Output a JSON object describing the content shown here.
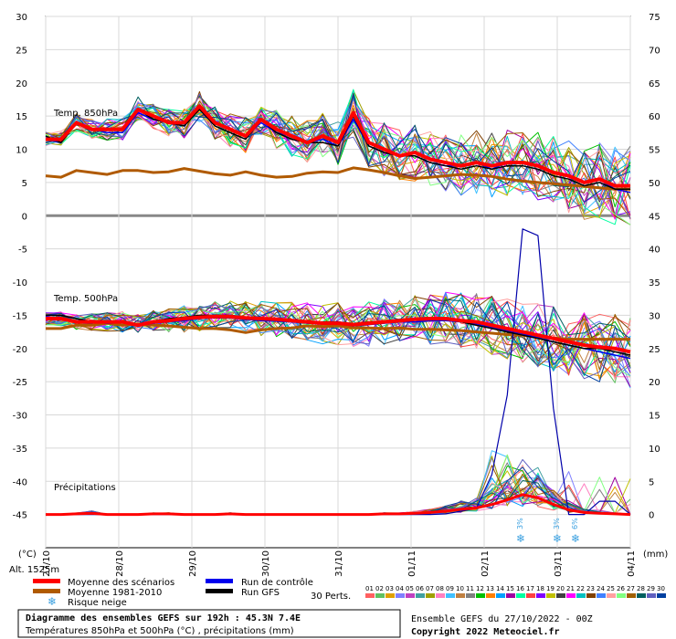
{
  "chart_data": {
    "type": "line",
    "title": "Diagramme des ensembles GEFS sur 192h : 45.3N 7.4E",
    "subtitle": "Températures 850hPa et 500hPa (°C) , précipitations (mm)",
    "run_info": "Ensemble GEFS du 27/10/2022 - 00Z",
    "copyright": "Copyright 2022 Meteociel.fr",
    "altitude": "Alt. 1525m",
    "left_unit": "(°C)",
    "right_unit": "(mm)",
    "left_axis": {
      "min": -50,
      "max": 30,
      "ticks": [
        "30",
        "25",
        "20",
        "15",
        "10",
        "5",
        "0",
        "-5",
        "-10",
        "-15",
        "-20",
        "-25",
        "-30",
        "-35",
        "-40",
        "-45"
      ]
    },
    "right_axis_ticks": [
      "75",
      "70",
      "65",
      "60",
      "55",
      "50",
      "45",
      "40",
      "35",
      "30",
      "25",
      "20",
      "15",
      "10",
      "5",
      "0"
    ],
    "x_dates": [
      "27/10",
      "28/10",
      "29/10",
      "30/10",
      "31/10",
      "01/11",
      "02/11",
      "03/11",
      "04/11"
    ],
    "panel_labels": {
      "t850": "Temp. 850hPa",
      "t500": "Temp. 500hPa",
      "precip": "Précipitations"
    },
    "t850_mean": [
      11.5,
      11.5,
      14,
      13,
      13,
      13,
      16,
      15,
      14,
      14,
      16.5,
      14,
      13,
      12,
      14.5,
      13,
      12,
      11,
      12,
      11,
      15.5,
      11,
      10,
      9,
      9.5,
      8.5,
      8,
      7.5,
      8,
      7.5,
      8,
      8,
      7.5,
      6.5,
      6,
      5,
      5.5,
      4.5,
      4.5
    ],
    "t850_gfs": [
      12,
      11,
      14,
      13,
      13,
      13,
      16,
      14.5,
      14,
      13.5,
      16,
      13.5,
      12.5,
      11.5,
      14.5,
      12.5,
      11.5,
      11,
      11,
      10.5,
      15,
      10.5,
      9.5,
      9,
      9,
      8,
      7.5,
      7,
      7.5,
      7,
      7.5,
      7.5,
      7,
      6,
      5.5,
      4.5,
      5,
      4,
      4
    ],
    "t850_control": [
      11.5,
      11,
      14,
      13,
      12.5,
      12.5,
      15.5,
      14.5,
      14,
      13.5,
      16.5,
      14,
      13,
      12,
      14,
      12.5,
      12,
      11,
      11.5,
      10.5,
      14.5,
      10.5,
      9.5,
      9,
      9,
      8,
      7.5,
      7.5,
      8,
      7,
      8,
      8,
      7.5,
      6.5,
      6,
      5,
      5.5,
      4,
      3.5
    ],
    "t850_clim": [
      6,
      5.8,
      6.8,
      6.5,
      6.2,
      6.8,
      6.8,
      6.5,
      6.6,
      7.1,
      6.7,
      6.3,
      6.1,
      6.6,
      6.1,
      5.8,
      5.9,
      6.4,
      6.6,
      6.5,
      7.2,
      6.9,
      6.5,
      6,
      5.6,
      5.8,
      6,
      6.2,
      6.1,
      5.9,
      5.5,
      5.2,
      5,
      4.8,
      4.6,
      4.4,
      4.2,
      4,
      4
    ],
    "t500_mean": [
      -15.5,
      -15.5,
      -16,
      -16,
      -16,
      -16,
      -16.5,
      -16,
      -15.8,
      -15.5,
      -15.3,
      -15.2,
      -15.2,
      -15.4,
      -15.5,
      -15.6,
      -15.8,
      -16,
      -16.2,
      -16.2,
      -16.4,
      -16.2,
      -16,
      -15.8,
      -15.6,
      -15.5,
      -15.5,
      -15.8,
      -16,
      -16.5,
      -17,
      -17.5,
      -18,
      -18.5,
      -19,
      -19.5,
      -19.8,
      -20,
      -20.5
    ],
    "t500_gfs": [
      -15,
      -15,
      -15.5,
      -16,
      -16,
      -16,
      -16.5,
      -16,
      -15.5,
      -15.3,
      -15,
      -15,
      -15,
      -15.3,
      -15.5,
      -15.5,
      -15.8,
      -16,
      -16,
      -16,
      -16.3,
      -16,
      -16,
      -15.8,
      -15.5,
      -15.3,
      -15.5,
      -16,
      -16.5,
      -17,
      -17.5,
      -18,
      -18.5,
      -19,
      -19.5,
      -20,
      -20,
      -20.5,
      -21
    ],
    "t500_control": [
      -15.2,
      -15.6,
      -16.1,
      -16,
      -16.2,
      -16.1,
      -16.6,
      -16.2,
      -16,
      -15.8,
      -15.5,
      -15.4,
      -15.4,
      -15.6,
      -15.8,
      -15.9,
      -16,
      -16.2,
      -16.3,
      -16.3,
      -16.6,
      -16.4,
      -16.2,
      -16,
      -16,
      -15.8,
      -15.8,
      -16,
      -16.3,
      -16.8,
      -17.3,
      -17.8,
      -18.4,
      -19,
      -19.5,
      -20,
      -20.5,
      -21,
      -21.5
    ],
    "t500_clim": [
      -17,
      -17,
      -16.5,
      -16.5,
      -16.2,
      -16.5,
      -16.3,
      -16.5,
      -16.6,
      -16.8,
      -17,
      -17,
      -17.2,
      -17.6,
      -17.2,
      -17,
      -16.9,
      -16.6,
      -16.7,
      -16.6,
      -16.9,
      -16.9,
      -17,
      -16.9,
      -17.1,
      -17.1,
      -17.2,
      -17.3,
      -17.5,
      -17.7,
      -17.9,
      -18,
      -18.2,
      -18.4,
      -18.6,
      -18.6,
      -18.6,
      -18.6,
      -18.6
    ],
    "precip_mean": [
      0,
      0,
      0.1,
      0.2,
      0,
      0,
      0,
      0.1,
      0.1,
      0,
      0,
      0,
      0.1,
      0,
      0,
      0,
      0,
      0,
      0,
      0,
      0,
      0,
      0.1,
      0.1,
      0.2,
      0.3,
      0.5,
      0.8,
      1,
      1.5,
      2.2,
      3,
      2.5,
      1.5,
      0.7,
      0.3,
      0.2,
      0.1,
      0
    ],
    "precip_control": [
      0,
      0,
      0,
      0,
      0,
      0,
      0,
      0,
      0,
      0,
      0,
      0,
      0,
      0,
      0,
      0,
      0,
      0,
      0,
      0,
      0,
      0,
      0,
      0,
      0,
      0,
      0.1,
      0.5,
      1,
      6,
      18,
      43,
      42,
      16,
      0,
      0,
      2,
      2,
      0
    ],
    "snow_risk": [
      {
        "date_index": 6.5,
        "label": "3%"
      },
      {
        "date_index": 7.0,
        "label": "3%"
      },
      {
        "date_index": 7.25,
        "label": "6%"
      }
    ],
    "legend": {
      "mean": "Moyenne des scénarios",
      "clim": "Moyenne 1981-2010",
      "snow": "Risque neige",
      "control": "Run de contrôle",
      "gfs": "Run GFS",
      "perts": "30 Perts."
    },
    "perts_labels": [
      "01",
      "02",
      "03",
      "04",
      "05",
      "06",
      "07",
      "08",
      "09",
      "10",
      "11",
      "12",
      "13",
      "14",
      "15",
      "16",
      "17",
      "18",
      "19",
      "20",
      "21",
      "22",
      "23",
      "24",
      "25",
      "26",
      "27",
      "28",
      "29",
      "30"
    ],
    "perts_colors": [
      "#ff6060",
      "#60c060",
      "#e0a000",
      "#8080ff",
      "#c040c0",
      "#40a0a0",
      "#a0a000",
      "#ff80c0",
      "#40c0ff",
      "#c08040",
      "#808080",
      "#00c000",
      "#ff8000",
      "#00a0ff",
      "#a000a0",
      "#00ffa0",
      "#ff4040",
      "#8000ff",
      "#c0c000",
      "#404040",
      "#ff00ff",
      "#00c0c0",
      "#804000",
      "#4080ff",
      "#ffa0a0",
      "#80ff80",
      "#a06000",
      "#006060",
      "#6060c0",
      "#0040a0"
    ]
  }
}
